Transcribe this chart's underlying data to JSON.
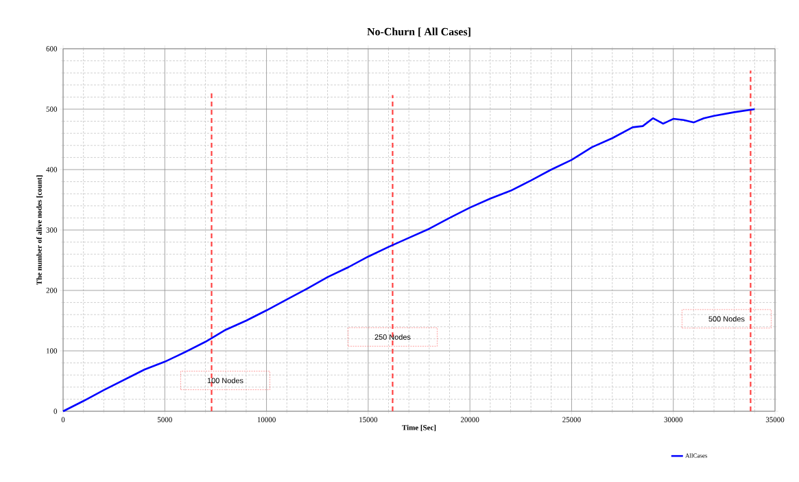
{
  "chart_data": {
    "type": "line",
    "title": "No-Churn [ All Cases]",
    "xlabel": "Time [Sec]",
    "ylabel": "The  number of alive nodes [count]",
    "xlim": [
      0,
      35000
    ],
    "xticks": [
      0,
      5000,
      10000,
      15000,
      20000,
      25000,
      30000,
      35000
    ],
    "ylim": [
      0,
      600
    ],
    "yticks": [
      0,
      100,
      200,
      300,
      400,
      500,
      600
    ],
    "grid": true,
    "legend": "bottom",
    "marker": "none",
    "line_style": "solid",
    "series": [
      {
        "name": "AllCases",
        "color": "#0000ff",
        "x": [
          0,
          1000,
          2000,
          3000,
          4000,
          5000,
          6000,
          7000,
          8000,
          9000,
          10000,
          11000,
          12000,
          13000,
          14000,
          15000,
          16000,
          17000,
          18000,
          19000,
          20000,
          21000,
          22000,
          23000,
          24000,
          25000,
          26000,
          27000,
          28000,
          28500,
          29000,
          29500,
          30000,
          30500,
          31000,
          31500,
          32000,
          33000,
          34000
        ],
        "values": [
          0,
          17,
          35,
          52,
          69,
          82,
          98,
          115,
          135,
          150,
          167,
          185,
          203,
          222,
          238,
          256,
          272,
          287,
          302,
          320,
          337,
          352,
          365,
          382,
          400,
          416,
          437,
          452,
          470,
          472,
          485,
          476,
          484,
          482,
          478,
          485,
          489,
          495,
          500
        ]
      }
    ],
    "ref_lines": [
      {
        "axis": "x",
        "value": 7300,
        "label": "100 Nodes",
        "color": "#ff4040",
        "line_style": "dashed"
      },
      {
        "axis": "x",
        "value": 16200,
        "label": "250 Nodes",
        "color": "#ff4040",
        "line_style": "dashed"
      },
      {
        "axis": "x",
        "value": 33800,
        "label": "500 Nodes",
        "color": "#ff4040",
        "line_style": "dashed"
      }
    ]
  }
}
